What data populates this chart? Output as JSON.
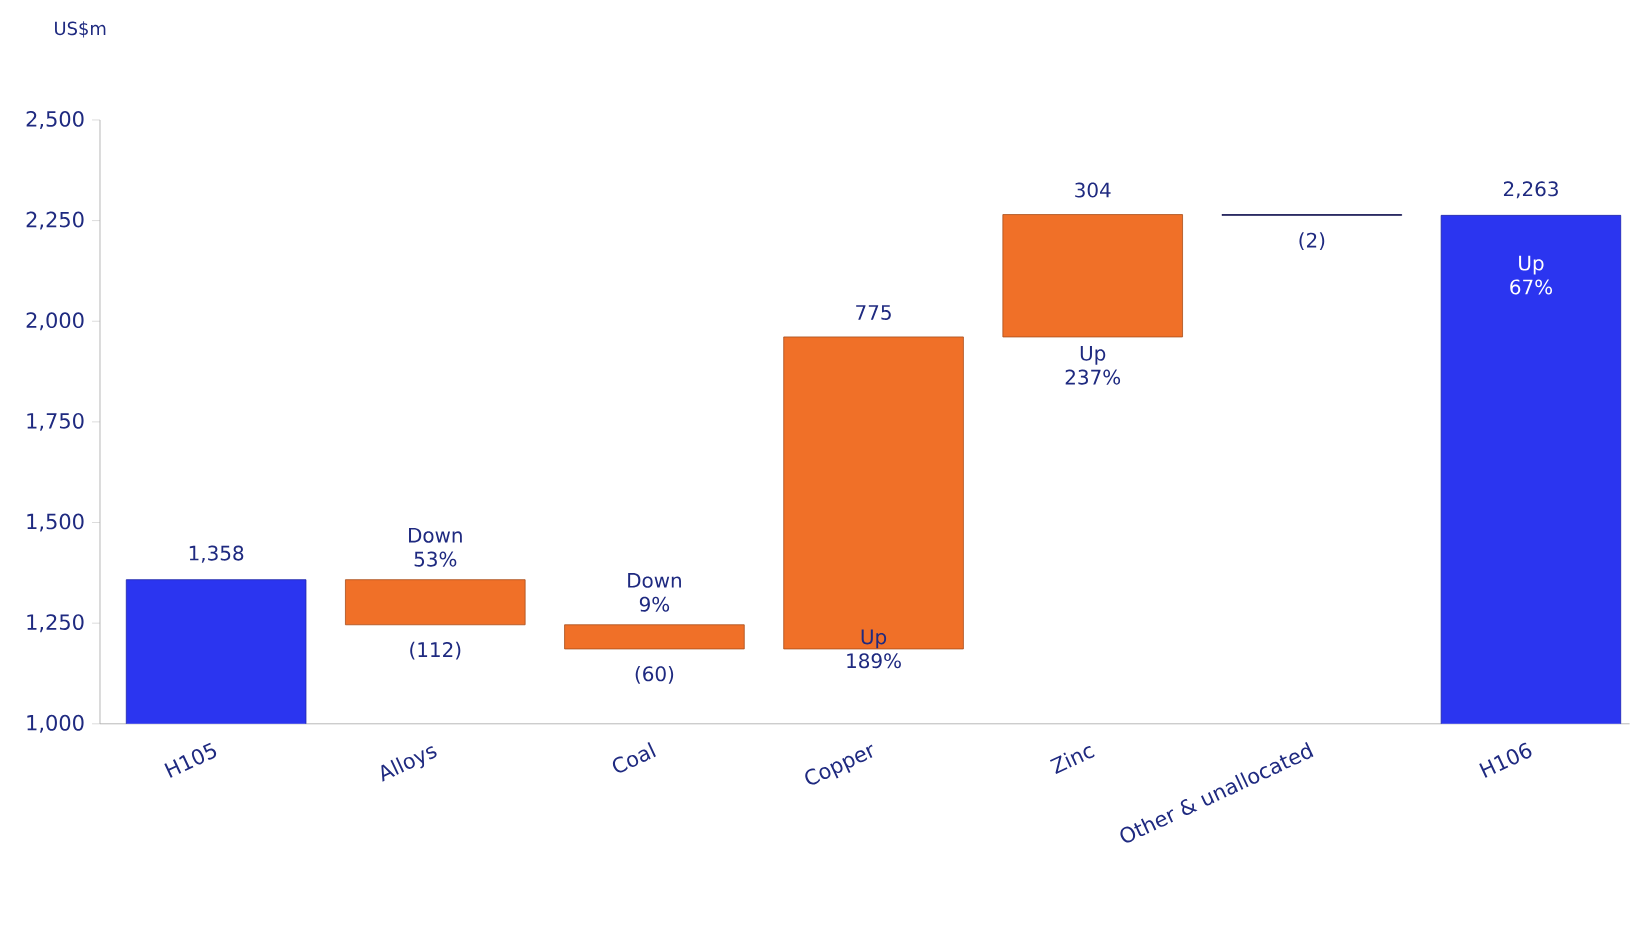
{
  "chart_data": {
    "type": "bar",
    "ylabel": "US$m",
    "categories": [
      "H105",
      "Alloys",
      "Coal",
      "Copper",
      "Zinc",
      "Other & unallocated",
      "H106"
    ],
    "values": [
      1358,
      -112,
      -60,
      775,
      304,
      -2,
      2263
    ],
    "base": [
      0,
      1358,
      1246,
      1186,
      1961,
      2265,
      0
    ],
    "colors": [
      "#2b35f0",
      "#f07028",
      "#f07028",
      "#f07028",
      "#f07028",
      "#1a1a6e",
      "#2b35f0"
    ],
    "value_labels": [
      "1,358",
      "(112)",
      "(60)",
      "775",
      "304",
      "(2)",
      "2,263"
    ],
    "ylim": [
      1000,
      2500
    ],
    "yticks": [
      {
        "value": 1000,
        "label": "1,000"
      },
      {
        "value": 1250,
        "label": "1,250"
      },
      {
        "value": 1500,
        "label": "1,500"
      },
      {
        "value": 1750,
        "label": "1,750"
      },
      {
        "value": 2000,
        "label": "2,000"
      },
      {
        "value": 2250,
        "label": "2,250"
      },
      {
        "value": 2500,
        "label": "2,500"
      }
    ],
    "grid": false,
    "annotations": [
      "Down 53%",
      "Down 9%",
      "Up 189%",
      "Up 237%",
      "Up 67%"
    ]
  }
}
